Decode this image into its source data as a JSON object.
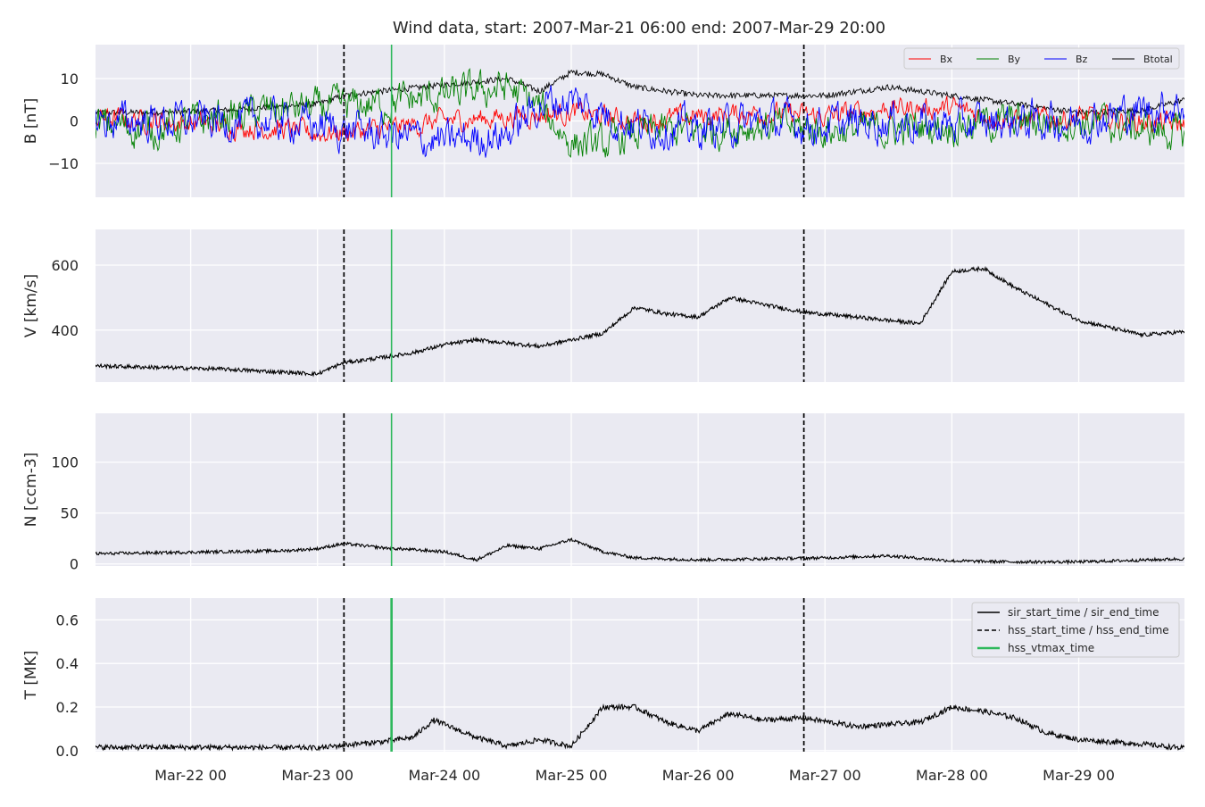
{
  "chart_data": {
    "type": "line",
    "title": "Wind data, start: 2007-Mar-21 06:00  end: 2007-Mar-29 20:00",
    "x_start": "2007-03-21T06:00",
    "x_end": "2007-03-29T20:00",
    "x_tick_labels": [
      "Mar-22 00",
      "Mar-23 00",
      "Mar-24 00",
      "Mar-25 00",
      "Mar-26 00",
      "Mar-27 00",
      "Mar-28 00",
      "Mar-29 00"
    ],
    "x_tick_times": [
      "2007-03-22T00:00",
      "2007-03-23T00:00",
      "2007-03-24T00:00",
      "2007-03-25T00:00",
      "2007-03-26T00:00",
      "2007-03-27T00:00",
      "2007-03-28T00:00",
      "2007-03-29T00:00"
    ],
    "markers": {
      "hss_start_time": "2007-03-23T05:00",
      "hss_vtmax_time": "2007-03-23T14:00",
      "hss_end_time": "2007-03-26T20:00"
    },
    "colors": {
      "Bx": "#ff0000",
      "By": "#008000",
      "Bz": "#0000ff",
      "Btotal": "#000000",
      "vtmax": "#2eb85c",
      "panel_bg": "#eaeaf2",
      "grid": "#ffffff"
    },
    "grid": true,
    "panels": [
      {
        "ylabel": "B [nT]",
        "ylim": [
          -18,
          18
        ],
        "yticks": [
          -10,
          0,
          10
        ],
        "ytick_labels": [
          "−10",
          "0",
          "10"
        ],
        "legend": {
          "placement": "top-right",
          "columns": 4,
          "entries": [
            "Bx",
            "By",
            "Bz",
            "Btotal"
          ]
        },
        "series": [
          {
            "name": "Btotal",
            "color": "#000000",
            "noise": 0.7,
            "knots": [
              [
                "2007-03-21T06:00",
                2
              ],
              [
                "2007-03-21T18:00",
                2
              ],
              [
                "2007-03-22T06:00",
                2.5
              ],
              [
                "2007-03-22T18:00",
                3.5
              ],
              [
                "2007-03-23T00:00",
                4
              ],
              [
                "2007-03-23T05:00",
                6
              ],
              [
                "2007-03-23T12:00",
                7
              ],
              [
                "2007-03-24T00:00",
                8.5
              ],
              [
                "2007-03-24T12:00",
                10
              ],
              [
                "2007-03-24T18:00",
                7
              ],
              [
                "2007-03-25T00:00",
                11.5
              ],
              [
                "2007-03-25T06:00",
                11
              ],
              [
                "2007-03-25T12:00",
                8
              ],
              [
                "2007-03-26T00:00",
                6
              ],
              [
                "2007-03-26T12:00",
                6
              ],
              [
                "2007-03-27T00:00",
                6
              ],
              [
                "2007-03-27T12:00",
                8
              ],
              [
                "2007-03-28T00:00",
                6
              ],
              [
                "2007-03-28T12:00",
                4
              ],
              [
                "2007-03-29T00:00",
                2
              ],
              [
                "2007-03-29T12:00",
                2.5
              ],
              [
                "2007-03-29T20:00",
                5
              ]
            ]
          },
          {
            "name": "Bx",
            "color": "#ff0000",
            "noise": 1.8,
            "knots": [
              [
                "2007-03-21T06:00",
                1
              ],
              [
                "2007-03-21T18:00",
                0
              ],
              [
                "2007-03-22T06:00",
                -1
              ],
              [
                "2007-03-22T18:00",
                -2
              ],
              [
                "2007-03-23T00:00",
                -3
              ],
              [
                "2007-03-23T12:00",
                -2
              ],
              [
                "2007-03-24T00:00",
                0
              ],
              [
                "2007-03-24T12:00",
                1
              ],
              [
                "2007-03-25T00:00",
                2
              ],
              [
                "2007-03-25T12:00",
                0
              ],
              [
                "2007-03-26T00:00",
                1
              ],
              [
                "2007-03-26T12:00",
                2
              ],
              [
                "2007-03-27T00:00",
                1
              ],
              [
                "2007-03-27T12:00",
                3
              ],
              [
                "2007-03-28T00:00",
                3
              ],
              [
                "2007-03-28T12:00",
                0
              ],
              [
                "2007-03-29T00:00",
                1
              ],
              [
                "2007-03-29T20:00",
                -1
              ]
            ]
          },
          {
            "name": "By",
            "color": "#008000",
            "noise": 3.0,
            "knots": [
              [
                "2007-03-21T06:00",
                -1
              ],
              [
                "2007-03-21T18:00",
                -2
              ],
              [
                "2007-03-22T06:00",
                1
              ],
              [
                "2007-03-22T18:00",
                3
              ],
              [
                "2007-03-23T00:00",
                3
              ],
              [
                "2007-03-23T12:00",
                4
              ],
              [
                "2007-03-24T00:00",
                6
              ],
              [
                "2007-03-24T12:00",
                8
              ],
              [
                "2007-03-24T18:00",
                3
              ],
              [
                "2007-03-25T00:00",
                -5
              ],
              [
                "2007-03-25T06:00",
                -6
              ],
              [
                "2007-03-25T12:00",
                -3
              ],
              [
                "2007-03-26T00:00",
                -2
              ],
              [
                "2007-03-26T12:00",
                -1
              ],
              [
                "2007-03-27T00:00",
                -2
              ],
              [
                "2007-03-27T12:00",
                -2
              ],
              [
                "2007-03-28T00:00",
                -1
              ],
              [
                "2007-03-28T12:00",
                0
              ],
              [
                "2007-03-29T00:00",
                0
              ],
              [
                "2007-03-29T20:00",
                -3
              ]
            ]
          },
          {
            "name": "Bz",
            "color": "#0000ff",
            "noise": 3.2,
            "knots": [
              [
                "2007-03-21T06:00",
                0
              ],
              [
                "2007-03-21T18:00",
                0
              ],
              [
                "2007-03-22T06:00",
                0
              ],
              [
                "2007-03-22T18:00",
                0
              ],
              [
                "2007-03-23T00:00",
                -1
              ],
              [
                "2007-03-23T12:00",
                -3
              ],
              [
                "2007-03-24T00:00",
                -5
              ],
              [
                "2007-03-24T12:00",
                -3
              ],
              [
                "2007-03-24T18:00",
                4
              ],
              [
                "2007-03-25T00:00",
                5
              ],
              [
                "2007-03-25T06:00",
                2
              ],
              [
                "2007-03-25T12:00",
                -1
              ],
              [
                "2007-03-26T00:00",
                -2
              ],
              [
                "2007-03-26T12:00",
                0
              ],
              [
                "2007-03-27T00:00",
                -1
              ],
              [
                "2007-03-27T12:00",
                0
              ],
              [
                "2007-03-28T00:00",
                -1
              ],
              [
                "2007-03-28T12:00",
                0
              ],
              [
                "2007-03-29T00:00",
                0
              ],
              [
                "2007-03-29T20:00",
                4
              ]
            ]
          }
        ]
      },
      {
        "ylabel": "V [km/s]",
        "ylim": [
          240,
          710
        ],
        "yticks": [
          400,
          600
        ],
        "ytick_labels": [
          "400",
          "600"
        ],
        "series": [
          {
            "name": "V",
            "color": "#000000",
            "noise": 6,
            "knots": [
              [
                "2007-03-21T06:00",
                290
              ],
              [
                "2007-03-21T18:00",
                285
              ],
              [
                "2007-03-22T06:00",
                280
              ],
              [
                "2007-03-22T18:00",
                270
              ],
              [
                "2007-03-23T00:00",
                265
              ],
              [
                "2007-03-23T05:00",
                300
              ],
              [
                "2007-03-23T12:00",
                315
              ],
              [
                "2007-03-23T18:00",
                330
              ],
              [
                "2007-03-24T00:00",
                355
              ],
              [
                "2007-03-24T06:00",
                370
              ],
              [
                "2007-03-24T12:00",
                360
              ],
              [
                "2007-03-24T18:00",
                350
              ],
              [
                "2007-03-25T00:00",
                370
              ],
              [
                "2007-03-25T06:00",
                390
              ],
              [
                "2007-03-25T12:00",
                470
              ],
              [
                "2007-03-25T18:00",
                450
              ],
              [
                "2007-03-26T00:00",
                440
              ],
              [
                "2007-03-26T06:00",
                500
              ],
              [
                "2007-03-26T12:00",
                480
              ],
              [
                "2007-03-26T20:00",
                455
              ],
              [
                "2007-03-27T06:00",
                440
              ],
              [
                "2007-03-27T18:00",
                420
              ],
              [
                "2007-03-28T00:00",
                580
              ],
              [
                "2007-03-28T06:00",
                590
              ],
              [
                "2007-03-28T12:00",
                530
              ],
              [
                "2007-03-28T18:00",
                480
              ],
              [
                "2007-03-29T00:00",
                430
              ],
              [
                "2007-03-29T12:00",
                385
              ],
              [
                "2007-03-29T20:00",
                395
              ]
            ]
          }
        ]
      },
      {
        "ylabel": "N [ccm-3]",
        "ylim": [
          -2,
          148
        ],
        "yticks": [
          0,
          50,
          100
        ],
        "ytick_labels": [
          "0",
          "50",
          "100"
        ],
        "series": [
          {
            "name": "N",
            "color": "#000000",
            "noise": 1.5,
            "knots": [
              [
                "2007-03-21T06:00",
                10
              ],
              [
                "2007-03-21T18:00",
                11
              ],
              [
                "2007-03-22T06:00",
                12
              ],
              [
                "2007-03-22T18:00",
                13
              ],
              [
                "2007-03-23T00:00",
                15
              ],
              [
                "2007-03-23T05:00",
                20
              ],
              [
                "2007-03-23T12:00",
                16
              ],
              [
                "2007-03-24T00:00",
                12
              ],
              [
                "2007-03-24T06:00",
                4
              ],
              [
                "2007-03-24T12:00",
                18
              ],
              [
                "2007-03-24T18:00",
                15
              ],
              [
                "2007-03-25T00:00",
                24
              ],
              [
                "2007-03-25T06:00",
                12
              ],
              [
                "2007-03-25T12:00",
                6
              ],
              [
                "2007-03-26T00:00",
                4
              ],
              [
                "2007-03-26T12:00",
                5
              ],
              [
                "2007-03-27T00:00",
                6
              ],
              [
                "2007-03-27T12:00",
                8
              ],
              [
                "2007-03-28T00:00",
                3
              ],
              [
                "2007-03-28T12:00",
                2
              ],
              [
                "2007-03-29T00:00",
                2
              ],
              [
                "2007-03-29T20:00",
                5
              ]
            ]
          }
        ]
      },
      {
        "ylabel": "T [MK]",
        "ylim": [
          -0.005,
          0.7
        ],
        "yticks": [
          0.0,
          0.2,
          0.4,
          0.6
        ],
        "ytick_labels": [
          "0.0",
          "0.2",
          "0.4",
          "0.6"
        ],
        "legend": {
          "placement": "top-right",
          "entries": [
            "sir_start_time / sir_end_time",
            "hss_start_time / hss_end_time",
            "hss_vtmax_time"
          ]
        },
        "series": [
          {
            "name": "T",
            "color": "#000000",
            "noise": 0.012,
            "knots": [
              [
                "2007-03-21T06:00",
                0.015
              ],
              [
                "2007-03-22T06:00",
                0.015
              ],
              [
                "2007-03-23T00:00",
                0.012
              ],
              [
                "2007-03-23T05:00",
                0.025
              ],
              [
                "2007-03-23T12:00",
                0.04
              ],
              [
                "2007-03-23T18:00",
                0.06
              ],
              [
                "2007-03-23T22:00",
                0.14
              ],
              [
                "2007-03-24T06:00",
                0.06
              ],
              [
                "2007-03-24T12:00",
                0.02
              ],
              [
                "2007-03-24T18:00",
                0.05
              ],
              [
                "2007-03-25T00:00",
                0.02
              ],
              [
                "2007-03-25T06:00",
                0.2
              ],
              [
                "2007-03-25T12:00",
                0.2
              ],
              [
                "2007-03-25T18:00",
                0.13
              ],
              [
                "2007-03-26T00:00",
                0.09
              ],
              [
                "2007-03-26T06:00",
                0.17
              ],
              [
                "2007-03-26T12:00",
                0.14
              ],
              [
                "2007-03-26T20:00",
                0.15
              ],
              [
                "2007-03-27T06:00",
                0.11
              ],
              [
                "2007-03-27T18:00",
                0.13
              ],
              [
                "2007-03-28T00:00",
                0.2
              ],
              [
                "2007-03-28T06:00",
                0.18
              ],
              [
                "2007-03-28T12:00",
                0.15
              ],
              [
                "2007-03-28T18:00",
                0.08
              ],
              [
                "2007-03-29T00:00",
                0.05
              ],
              [
                "2007-03-29T12:00",
                0.03
              ],
              [
                "2007-03-29T20:00",
                0.01
              ]
            ]
          }
        ]
      }
    ]
  }
}
